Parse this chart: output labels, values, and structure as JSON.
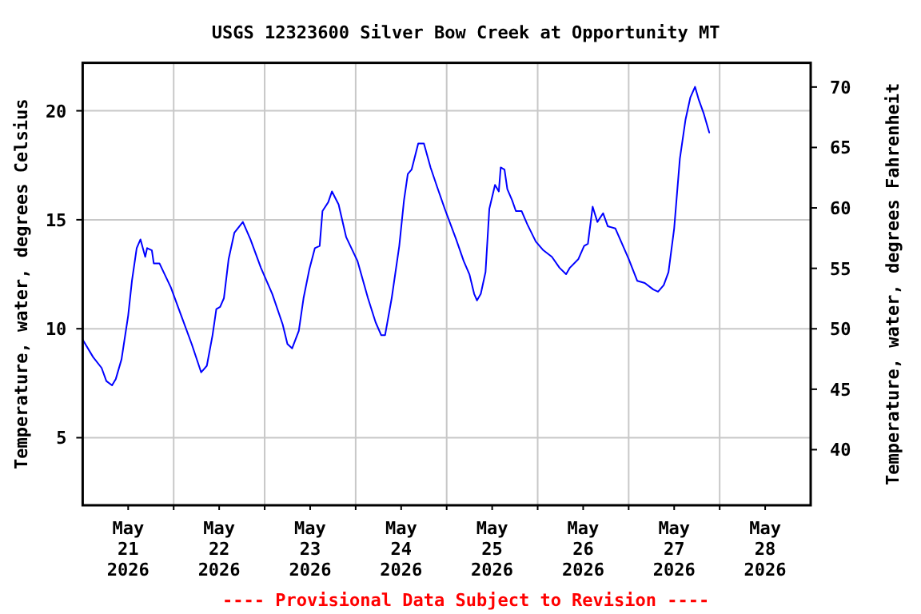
{
  "chart_data": {
    "type": "line",
    "title": "USGS 12323600 Silver Bow Creek at Opportunity MT",
    "ylabel": "Temperature, water, degrees Celsius",
    "y2label": "Temperature, water, degrees Fahrenheit",
    "annotations": [
      "---- Provisional Data Subject to Revision ----"
    ],
    "xlim": [
      "2026-05-21T00:00",
      "2026-05-29T00:00"
    ],
    "xticks": [
      {
        "value": "2026-05-21T12:00",
        "label": "May\n21\n2026"
      },
      {
        "value": "2026-05-22T12:00",
        "label": "May\n22\n2026"
      },
      {
        "value": "2026-05-23T12:00",
        "label": "May\n23\n2026"
      },
      {
        "value": "2026-05-24T12:00",
        "label": "May\n24\n2026"
      },
      {
        "value": "2026-05-25T12:00",
        "label": "May\n25\n2026"
      },
      {
        "value": "2026-05-26T12:00",
        "label": "May\n26\n2026"
      },
      {
        "value": "2026-05-27T12:00",
        "label": "May\n27\n2026"
      },
      {
        "value": "2026-05-28T12:00",
        "label": "May\n28\n2026"
      },
      {
        "value": "2026-05-22T00:00",
        "label": null
      },
      {
        "value": "2026-05-23T00:00",
        "label": null
      },
      {
        "value": "2026-05-24T00:00",
        "label": null
      },
      {
        "value": "2026-05-25T00:00",
        "label": null
      },
      {
        "value": "2026-05-26T00:00",
        "label": null
      },
      {
        "value": "2026-05-27T00:00",
        "label": null
      },
      {
        "value": "2026-05-28T00:00",
        "label": null
      }
    ],
    "ylim": [
      1.9,
      22.2
    ],
    "yticks": [
      5,
      10,
      15,
      20
    ],
    "y2lim": [
      35.4,
      72.0
    ],
    "y2ticks": [
      40,
      45,
      50,
      55,
      60,
      65,
      70
    ],
    "grid": true,
    "x": [
      "2026-05-21T00:00",
      "2026-05-21T02:45",
      "2026-05-21T05:00",
      "2026-05-21T06:15",
      "2026-05-21T07:45",
      "2026-05-21T08:45",
      "2026-05-21T10:15",
      "2026-05-21T12:00",
      "2026-05-21T13:00",
      "2026-05-21T14:15",
      "2026-05-21T15:15",
      "2026-05-21T16:30",
      "2026-05-21T17:00",
      "2026-05-21T18:15",
      "2026-05-21T18:45",
      "2026-05-21T20:15",
      "2026-05-21T23:15",
      "2026-05-22T02:00",
      "2026-05-22T04:45",
      "2026-05-22T07:15",
      "2026-05-22T08:45",
      "2026-05-22T10:15",
      "2026-05-22T11:15",
      "2026-05-22T12:15",
      "2026-05-22T13:15",
      "2026-05-22T14:30",
      "2026-05-22T16:00",
      "2026-05-22T18:15",
      "2026-05-22T20:15",
      "2026-05-22T23:00",
      "2026-05-23T02:00",
      "2026-05-23T04:45",
      "2026-05-23T06:00",
      "2026-05-23T07:15",
      "2026-05-23T09:00",
      "2026-05-23T10:15",
      "2026-05-23T11:45",
      "2026-05-23T13:15",
      "2026-05-23T14:30",
      "2026-05-23T15:15",
      "2026-05-23T16:45",
      "2026-05-23T17:45",
      "2026-05-23T19:30",
      "2026-05-23T21:30",
      "2026-05-24T00:30",
      "2026-05-24T03:15",
      "2026-05-24T05:15",
      "2026-05-24T06:45",
      "2026-05-24T07:45",
      "2026-05-24T09:30",
      "2026-05-24T11:30",
      "2026-05-24T12:45",
      "2026-05-24T13:45",
      "2026-05-24T14:45",
      "2026-05-24T16:30",
      "2026-05-24T18:00",
      "2026-05-24T19:45",
      "2026-05-24T21:30",
      "2026-05-24T23:30",
      "2026-05-25T02:30",
      "2026-05-25T04:30",
      "2026-05-25T06:00",
      "2026-05-25T07:15",
      "2026-05-25T08:00",
      "2026-05-25T09:00",
      "2026-05-25T10:15",
      "2026-05-25T11:15",
      "2026-05-25T12:45",
      "2026-05-25T13:45",
      "2026-05-25T14:15",
      "2026-05-25T15:15",
      "2026-05-25T16:00",
      "2026-05-25T17:15",
      "2026-05-25T18:15",
      "2026-05-25T19:45",
      "2026-05-25T21:15",
      "2026-05-25T23:30",
      "2026-05-26T01:30",
      "2026-05-26T03:45",
      "2026-05-26T05:45",
      "2026-05-26T07:30",
      "2026-05-26T08:30",
      "2026-05-26T10:45",
      "2026-05-26T12:15",
      "2026-05-26T13:15",
      "2026-05-26T14:30",
      "2026-05-26T15:45",
      "2026-05-26T17:15",
      "2026-05-26T18:30",
      "2026-05-26T20:30",
      "2026-05-26T22:00",
      "2026-05-27T00:00",
      "2026-05-27T02:15",
      "2026-05-27T04:15",
      "2026-05-27T06:30",
      "2026-05-27T07:45",
      "2026-05-27T09:15",
      "2026-05-27T10:30",
      "2026-05-27T12:00",
      "2026-05-27T13:30",
      "2026-05-27T15:00",
      "2026-05-27T16:15",
      "2026-05-27T17:30",
      "2026-05-27T18:30",
      "2026-05-27T19:45",
      "2026-05-27T21:15"
    ],
    "series": [
      {
        "color": "#0000ff",
        "values": [
          9.5,
          8.7,
          8.2,
          7.6,
          7.4,
          7.7,
          8.6,
          10.6,
          12.2,
          13.7,
          14.1,
          13.3,
          13.7,
          13.6,
          13.0,
          13.0,
          11.9,
          10.6,
          9.3,
          8.0,
          8.3,
          9.7,
          10.9,
          11.0,
          11.4,
          13.2,
          14.4,
          14.9,
          14.1,
          12.8,
          11.6,
          10.2,
          9.3,
          9.1,
          9.9,
          11.4,
          12.7,
          13.7,
          13.8,
          15.4,
          15.8,
          16.3,
          15.7,
          14.2,
          13.1,
          11.4,
          10.3,
          9.7,
          9.7,
          11.4,
          13.8,
          15.9,
          17.1,
          17.3,
          18.5,
          18.5,
          17.4,
          16.5,
          15.5,
          14.1,
          13.1,
          12.5,
          11.6,
          11.3,
          11.6,
          12.6,
          15.5,
          16.6,
          16.3,
          17.4,
          17.3,
          16.4,
          15.9,
          15.4,
          15.4,
          14.8,
          14.0,
          13.6,
          13.3,
          12.8,
          12.5,
          12.8,
          13.2,
          13.8,
          13.9,
          15.6,
          14.9,
          15.3,
          14.7,
          14.6,
          14.0,
          13.2,
          12.2,
          12.1,
          11.8,
          11.7,
          12.0,
          12.6,
          14.6,
          17.8,
          19.6,
          20.6,
          21.1,
          20.5,
          19.9,
          19.0
        ]
      }
    ]
  }
}
